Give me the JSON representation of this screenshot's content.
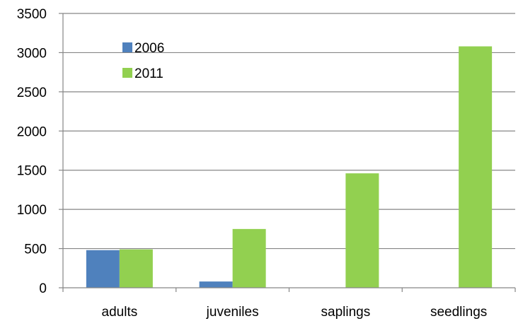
{
  "chart_data": {
    "type": "bar",
    "categories": [
      "adults",
      "juveniles",
      "saplings",
      "seedlings"
    ],
    "series": [
      {
        "name": "2006",
        "color": "#4f81bd",
        "values": [
          480,
          80,
          0,
          0
        ]
      },
      {
        "name": "2011",
        "color": "#92d050",
        "values": [
          490,
          750,
          1460,
          3080
        ]
      }
    ],
    "ylim": [
      0,
      3500
    ],
    "yticks": [
      0,
      500,
      1000,
      1500,
      2000,
      2500,
      3000,
      3500
    ],
    "grid": true,
    "legend_position": "top-left"
  }
}
